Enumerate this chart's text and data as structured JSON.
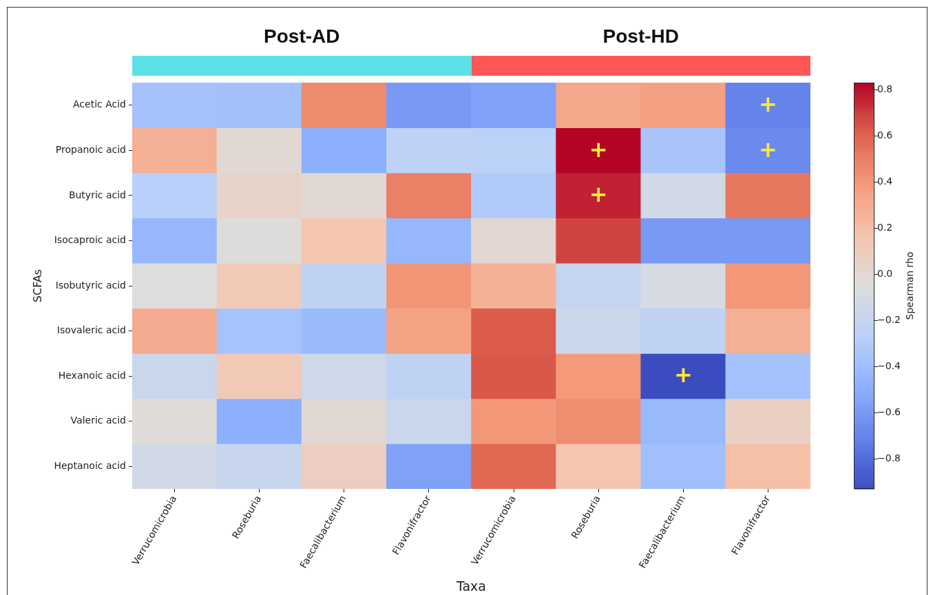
{
  "chart_data": {
    "type": "heatmap",
    "xlabel": "Taxa",
    "ylabel": "SCFAs",
    "clabel": "Spearman rho",
    "annotations": [
      "Post-AD",
      "Post-HD"
    ],
    "categories": [
      "Verrucomicrobia",
      "Roseburia",
      "Faecalibacterium",
      "Flavonifractor",
      "Verrucomicrobia",
      "Roseburia",
      "Faecalibacterium",
      "Flavonifractor"
    ],
    "y_categories": [
      "Acetic Acid",
      "Propanoic acid",
      "Butyric acid",
      "Isocaproic acid",
      "Isobutyric acid",
      "Isovaleric acid",
      "Hexanoic acid",
      "Valeric acid",
      "Heptanoic acid"
    ],
    "cells": [
      [
        -0.37,
        -0.38,
        0.45,
        -0.6,
        -0.56,
        0.32,
        0.36,
        -0.7
      ],
      [
        0.28,
        -0.01,
        -0.49,
        -0.24,
        -0.25,
        0.83,
        -0.35,
        -0.67
      ],
      [
        -0.27,
        0.04,
        -0.01,
        0.49,
        -0.31,
        0.76,
        -0.12,
        0.52
      ],
      [
        -0.44,
        -0.04,
        0.16,
        -0.44,
        0.0,
        0.68,
        -0.6,
        -0.6
      ],
      [
        -0.05,
        0.13,
        -0.23,
        0.41,
        0.27,
        -0.19,
        -0.1,
        0.4
      ],
      [
        0.3,
        -0.36,
        -0.42,
        0.35,
        0.62,
        -0.16,
        -0.23,
        0.28
      ],
      [
        -0.17,
        0.13,
        -0.14,
        -0.23,
        0.63,
        0.39,
        -0.93,
        -0.37
      ],
      [
        -0.03,
        -0.49,
        -0.01,
        -0.17,
        0.4,
        0.44,
        -0.43,
        0.07
      ],
      [
        -0.12,
        -0.18,
        0.08,
        -0.56,
        0.58,
        0.16,
        -0.39,
        0.19
      ]
    ],
    "cell_labels": [
      [
        null,
        null,
        null,
        null,
        null,
        null,
        null,
        "+"
      ],
      [
        null,
        null,
        null,
        null,
        null,
        "+",
        null,
        "+"
      ],
      [
        null,
        null,
        null,
        null,
        null,
        "+",
        null,
        null
      ],
      [
        null,
        null,
        null,
        null,
        null,
        null,
        null,
        null
      ],
      [
        null,
        null,
        null,
        null,
        null,
        null,
        null,
        null
      ],
      [
        null,
        null,
        null,
        null,
        null,
        null,
        null,
        null
      ],
      [
        null,
        null,
        null,
        null,
        null,
        null,
        "+",
        null
      ],
      [
        null,
        null,
        null,
        null,
        null,
        null,
        null,
        null
      ],
      [
        null,
        null,
        null,
        null,
        null,
        null,
        null,
        null
      ]
    ],
    "clim": [
      -0.93,
      0.83
    ],
    "cticks": [
      {
        "value": -0.8,
        "label": "−0.8"
      },
      {
        "value": -0.6,
        "label": "−0.6"
      },
      {
        "value": -0.4,
        "label": "−0.4"
      },
      {
        "value": -0.2,
        "label": "−0.2"
      },
      {
        "value": 0,
        "label": "0.0"
      },
      0.2,
      0.4,
      0.6,
      0.8
    ]
  }
}
